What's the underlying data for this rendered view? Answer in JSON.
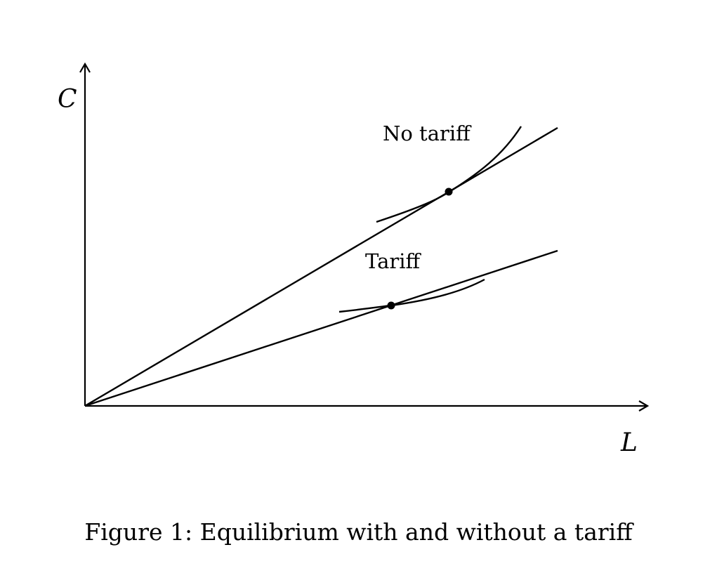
{
  "axes": {
    "x_label": "L",
    "y_label": "C"
  },
  "lines": {
    "no_tariff_label": "No tariff",
    "tariff_label": "Tariff"
  },
  "caption": {
    "number": "Figure 1:",
    "text": "Equilibrium with and without a tariff"
  }
}
